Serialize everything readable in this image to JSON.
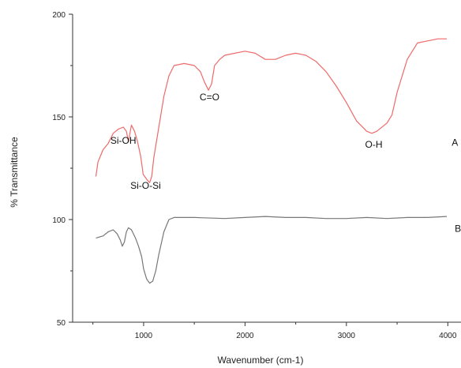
{
  "chart_data": {
    "type": "line",
    "title": "",
    "xlabel": "Wavenumber (cm-1)",
    "ylabel": "% Transmittance",
    "xlim": [
      300,
      4130
    ],
    "ylim": [
      50,
      200
    ],
    "xticks": [
      1000,
      2000,
      3000,
      4000
    ],
    "xtick_labels": [
      "1000",
      "2000",
      "3000",
      "4000"
    ],
    "yticks": [
      50,
      100,
      150,
      200
    ],
    "ytick_labels": [
      "50",
      "100",
      "150",
      "200"
    ],
    "grid": false,
    "legend": "none",
    "series": [
      {
        "name": "A",
        "color": "#ee6a6a",
        "points": [
          [
            530,
            121
          ],
          [
            550,
            128
          ],
          [
            600,
            134
          ],
          [
            650,
            137
          ],
          [
            700,
            142
          ],
          [
            750,
            144
          ],
          [
            800,
            145
          ],
          [
            830,
            143
          ],
          [
            850,
            138
          ],
          [
            880,
            146
          ],
          [
            910,
            143
          ],
          [
            940,
            138
          ],
          [
            970,
            131
          ],
          [
            985,
            126
          ],
          [
            995,
            122
          ],
          [
            1010,
            121
          ],
          [
            1025,
            120
          ],
          [
            1040,
            119
          ],
          [
            1060,
            118
          ],
          [
            1080,
            121
          ],
          [
            1100,
            130
          ],
          [
            1150,
            145
          ],
          [
            1200,
            160
          ],
          [
            1250,
            170
          ],
          [
            1300,
            175
          ],
          [
            1400,
            176
          ],
          [
            1500,
            175
          ],
          [
            1560,
            172
          ],
          [
            1600,
            167
          ],
          [
            1640,
            163
          ],
          [
            1670,
            166
          ],
          [
            1700,
            175
          ],
          [
            1750,
            178
          ],
          [
            1800,
            180
          ],
          [
            1900,
            181
          ],
          [
            2000,
            182
          ],
          [
            2100,
            181
          ],
          [
            2200,
            178
          ],
          [
            2300,
            178
          ],
          [
            2400,
            180
          ],
          [
            2500,
            181
          ],
          [
            2600,
            180
          ],
          [
            2700,
            177
          ],
          [
            2800,
            172
          ],
          [
            2900,
            165
          ],
          [
            3000,
            157
          ],
          [
            3100,
            148
          ],
          [
            3200,
            143
          ],
          [
            3250,
            142
          ],
          [
            3300,
            143
          ],
          [
            3400,
            147
          ],
          [
            3450,
            151
          ],
          [
            3500,
            162
          ],
          [
            3600,
            178
          ],
          [
            3700,
            186
          ],
          [
            3800,
            187
          ],
          [
            3900,
            188
          ],
          [
            3990,
            188
          ]
        ]
      },
      {
        "name": "B",
        "color": "#777777",
        "points": [
          [
            530,
            91
          ],
          [
            600,
            92
          ],
          [
            650,
            94
          ],
          [
            700,
            95
          ],
          [
            740,
            93
          ],
          [
            770,
            90
          ],
          [
            790,
            87
          ],
          [
            810,
            89
          ],
          [
            830,
            94
          ],
          [
            850,
            96
          ],
          [
            880,
            95
          ],
          [
            920,
            91
          ],
          [
            950,
            87
          ],
          [
            980,
            82
          ],
          [
            1000,
            76
          ],
          [
            1030,
            71
          ],
          [
            1060,
            69
          ],
          [
            1090,
            70
          ],
          [
            1120,
            75
          ],
          [
            1150,
            83
          ],
          [
            1200,
            94
          ],
          [
            1250,
            100
          ],
          [
            1300,
            101
          ],
          [
            1500,
            101
          ],
          [
            1800,
            100.5
          ],
          [
            2000,
            101
          ],
          [
            2200,
            101.5
          ],
          [
            2400,
            101
          ],
          [
            2600,
            101
          ],
          [
            2800,
            100.5
          ],
          [
            3000,
            100.5
          ],
          [
            3200,
            101
          ],
          [
            3400,
            100.5
          ],
          [
            3600,
            101
          ],
          [
            3800,
            101
          ],
          [
            3990,
            101.5
          ]
        ]
      }
    ],
    "annotations": [
      {
        "text": "Si-OH",
        "x": 800,
        "y": 137
      },
      {
        "text": "Si-O-Si",
        "x": 1020,
        "y": 115
      },
      {
        "text": "C=O",
        "x": 1650,
        "y": 158
      },
      {
        "text": "O-H",
        "x": 3270,
        "y": 135
      },
      {
        "text": "A",
        "x": 4070,
        "y": 136
      },
      {
        "text": "B",
        "x": 4100,
        "y": 94
      }
    ]
  }
}
